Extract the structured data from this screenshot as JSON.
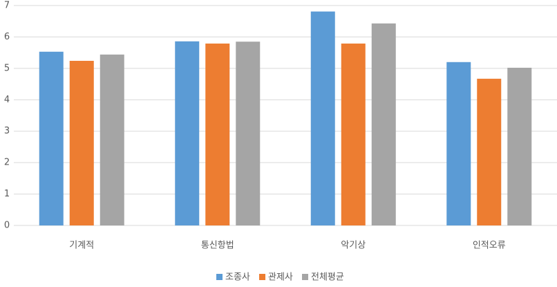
{
  "chart_data": {
    "type": "bar",
    "categories": [
      "기계적",
      "통신항법",
      "악기상",
      "인적오류"
    ],
    "series": [
      {
        "name": "조종사",
        "color": "#5b9bd5",
        "values": [
          5.53,
          5.86,
          6.81,
          5.2
        ]
      },
      {
        "name": "관제사",
        "color": "#ed7d31",
        "values": [
          5.24,
          5.79,
          5.79,
          4.67
        ]
      },
      {
        "name": "전체평균",
        "color": "#a5a5a5",
        "values": [
          5.44,
          5.85,
          6.43,
          5.02
        ]
      }
    ],
    "ylim": [
      0,
      7
    ],
    "yticks": [
      0,
      1,
      2,
      3,
      4,
      5,
      6,
      7
    ],
    "grid": true,
    "legend": "bottom"
  }
}
